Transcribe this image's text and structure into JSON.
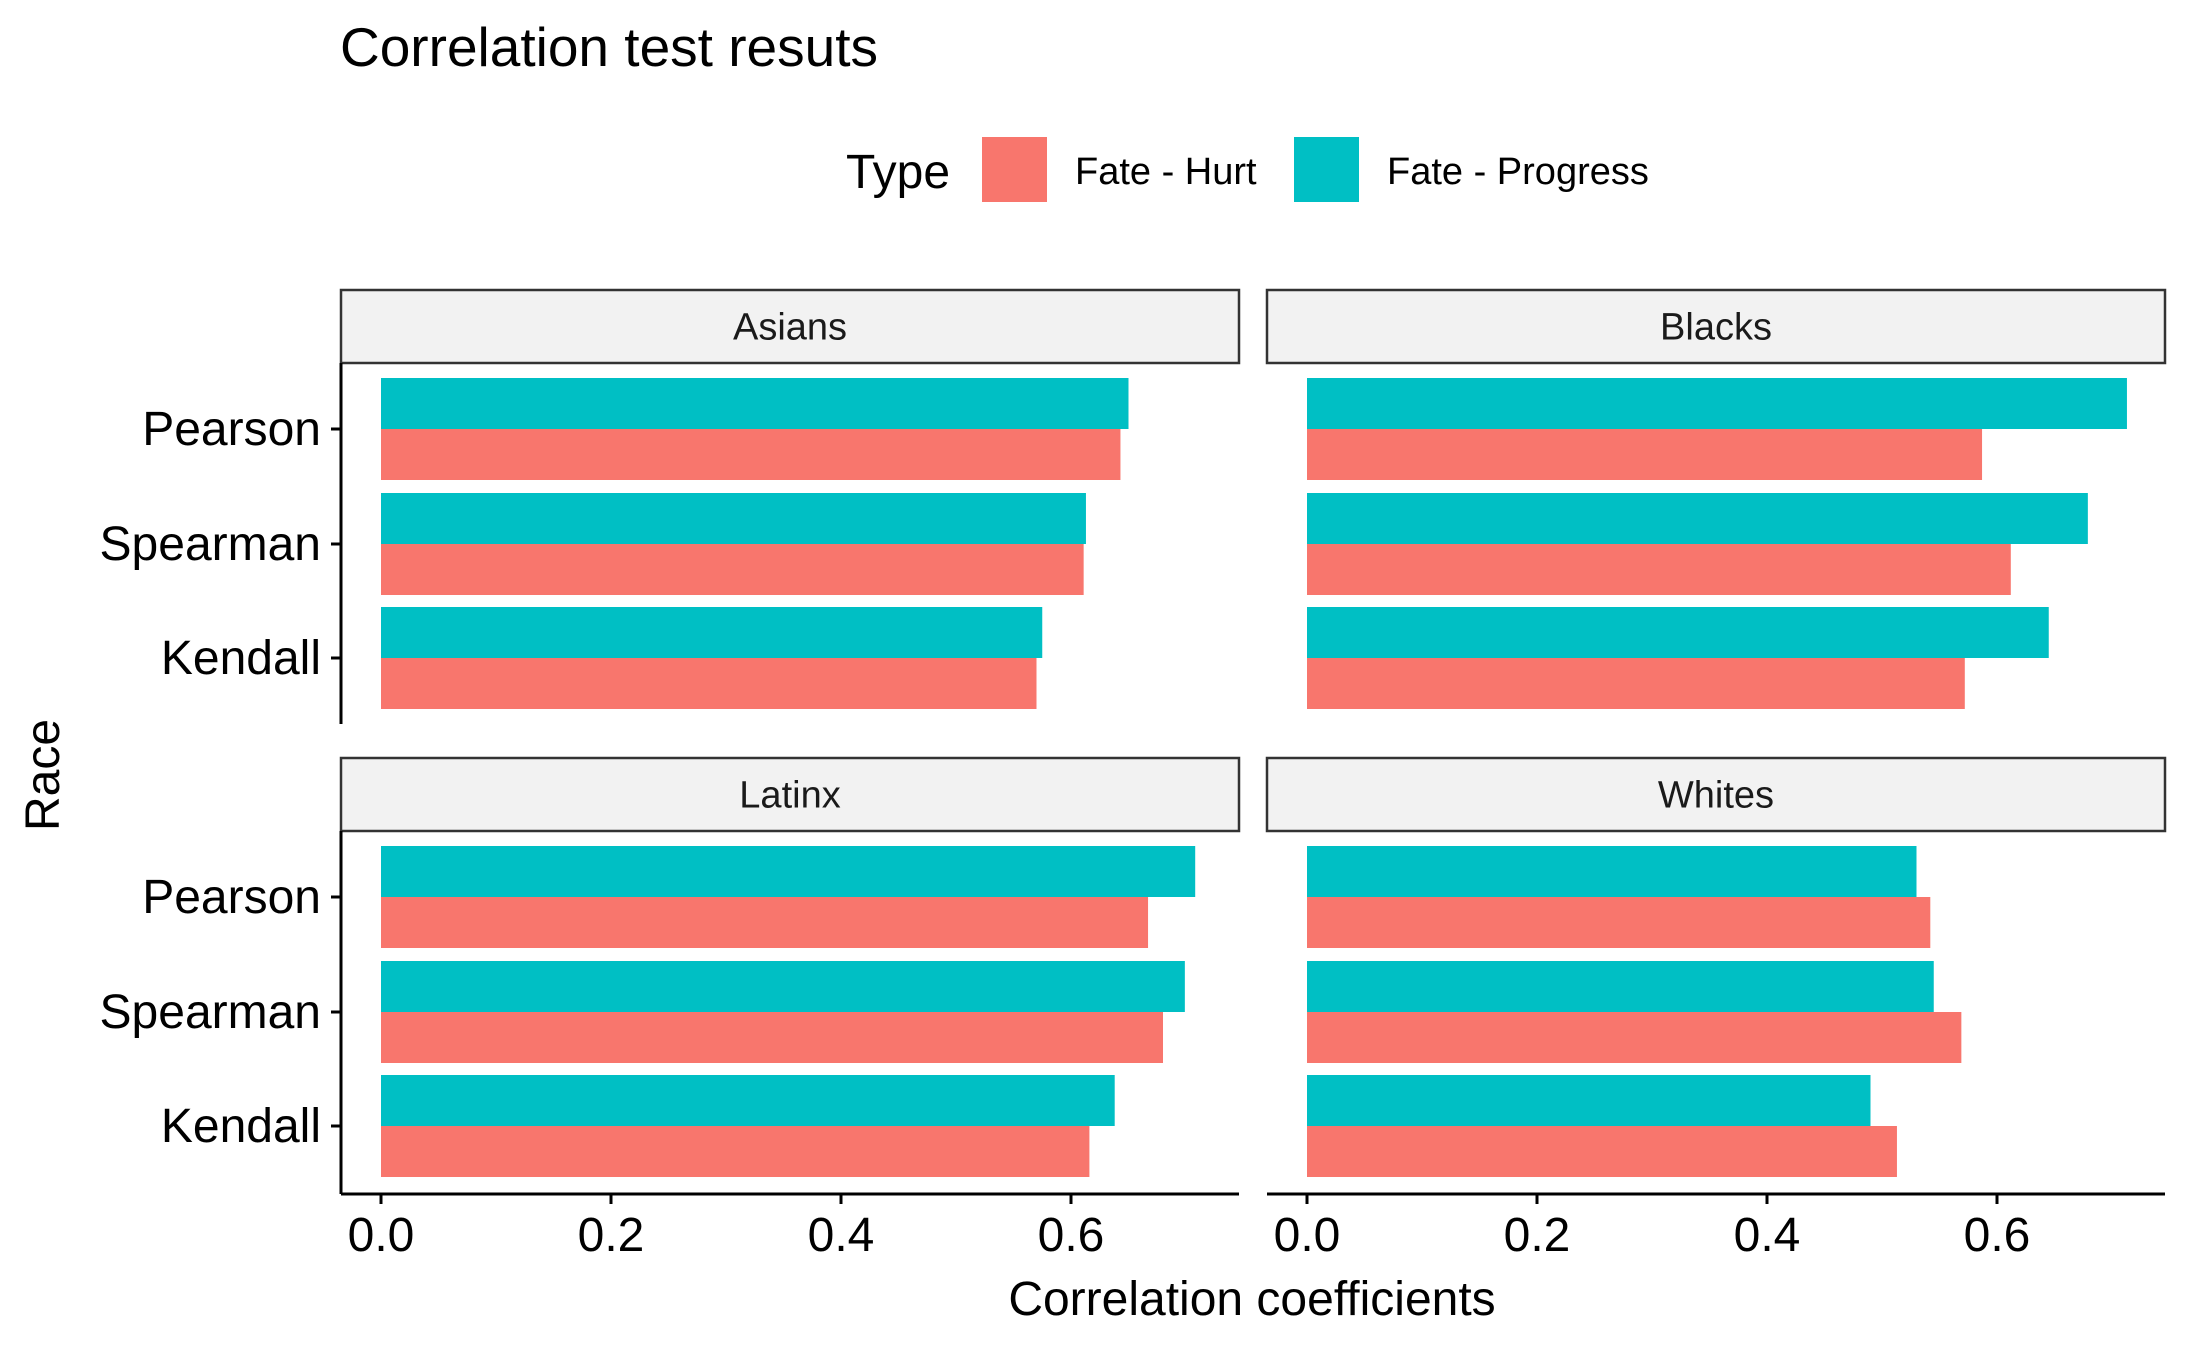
{
  "chart_data": {
    "type": "bar",
    "orientation": "horizontal",
    "title": "Correlation test resuts",
    "xlabel": "Correlation coefficients",
    "ylabel": "Race",
    "xlim": [
      -0.036,
      0.745
    ],
    "x_ticks": [
      0.0,
      0.2,
      0.4,
      0.6
    ],
    "x_tick_labels": [
      "0.0",
      "0.2",
      "0.4",
      "0.6"
    ],
    "categories": [
      "Pearson",
      "Spearman",
      "Kendall"
    ],
    "legend": {
      "title": "Type",
      "position": "top",
      "entries": [
        "Fate - Hurt",
        "Fate - Progress"
      ]
    },
    "colors": {
      "Fate - Hurt": "#F8766D",
      "Fate - Progress": "#00BFC4"
    },
    "grid": false,
    "facets": [
      {
        "label": "Asians",
        "series": [
          {
            "name": "Fate - Hurt",
            "values": [
              0.643,
              0.611,
              0.57
            ]
          },
          {
            "name": "Fate - Progress",
            "values": [
              0.65,
              0.613,
              0.575
            ]
          }
        ]
      },
      {
        "label": "Blacks",
        "series": [
          {
            "name": "Fate - Hurt",
            "values": [
              0.587,
              0.612,
              0.572
            ]
          },
          {
            "name": "Fate - Progress",
            "values": [
              0.713,
              0.679,
              0.645
            ]
          }
        ]
      },
      {
        "label": "Latinx",
        "series": [
          {
            "name": "Fate - Hurt",
            "values": [
              0.667,
              0.68,
              0.616
            ]
          },
          {
            "name": "Fate - Progress",
            "values": [
              0.708,
              0.699,
              0.638
            ]
          }
        ]
      },
      {
        "label": "Whites",
        "series": [
          {
            "name": "Fate - Hurt",
            "values": [
              0.542,
              0.569,
              0.513
            ]
          },
          {
            "name": "Fate - Progress",
            "values": [
              0.53,
              0.545,
              0.49
            ]
          }
        ]
      }
    ]
  }
}
